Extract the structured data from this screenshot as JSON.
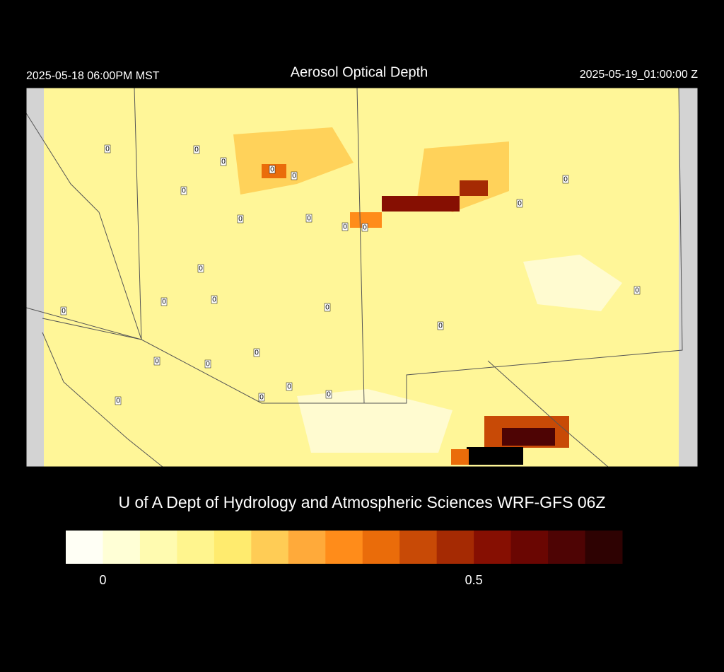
{
  "header": {
    "title": "Aerosol Optical Depth",
    "left_time": "2025-05-18 06:00PM MST",
    "right_time": "2025-05-19_01:00:00 Z"
  },
  "stations": [
    0,
    0,
    0,
    0,
    0,
    0,
    0,
    0,
    0,
    0,
    0,
    0,
    0,
    0,
    0,
    0,
    0,
    0,
    0,
    0,
    0,
    0,
    0,
    0,
    0,
    0
  ],
  "credit": "U of A Dept of Hydrology and Atmospheric Sciences WRF-GFS 06Z",
  "colorbar": {
    "range": [
      -0.05,
      0.7
    ],
    "ticks": [
      0,
      0.5
    ],
    "colors": [
      "#fffff5",
      "#ffffd6",
      "#fffbb0",
      "#fff58e",
      "#ffeb6e",
      "#ffcc55",
      "#ffaa3a",
      "#ff8c1a",
      "#ea6c0a",
      "#c84a06",
      "#a52a03",
      "#860f02",
      "#6a0602",
      "#4e0404",
      "#2e0202"
    ]
  }
}
